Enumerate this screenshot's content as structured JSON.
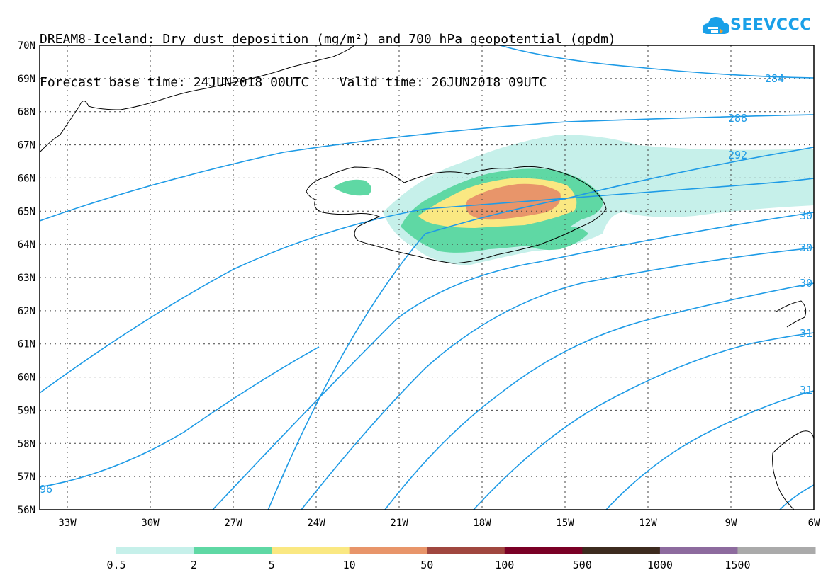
{
  "header": {
    "title_line1": "DREAM8-Iceland: Dry dust deposition (mg/m²) and 700 hPa geopotential (gpdm)",
    "title_line2": "Forecast base time: 24JUN2018 00UTC    Valid time: 26JUN2018 09UTC"
  },
  "logo": {
    "text": "SEEVCCC",
    "icon": "cloud-icon"
  },
  "map": {
    "lat_labels": [
      "70N",
      "69N",
      "68N",
      "67N",
      "66N",
      "65N",
      "64N",
      "63N",
      "62N",
      "61N",
      "60N",
      "59N",
      "58N",
      "57N",
      "56N"
    ],
    "lon_labels": [
      "33W",
      "30W",
      "27W",
      "24W",
      "21W",
      "18W",
      "15W",
      "12W",
      "9W",
      "6W"
    ],
    "lat_range": [
      56,
      70
    ],
    "lon_range": [
      -34,
      -6
    ],
    "grid": "dotted",
    "contour_labels": [
      "284",
      "288",
      "292",
      "30",
      "30",
      "30",
      "31",
      "31",
      "96"
    ]
  },
  "legend": {
    "labels": [
      "0.5",
      "2",
      "5",
      "10",
      "50",
      "100",
      "500",
      "1000",
      "1500"
    ],
    "colors": [
      "#c6f0ea",
      "#5fd8a4",
      "#fae882",
      "#e8956a",
      "#a0473f",
      "#7a0026",
      "#3d2b1f",
      "#8d6b9e",
      "#aaaaaa"
    ]
  },
  "colors": {
    "contour": "#1e9be6",
    "coast": "#000000"
  }
}
